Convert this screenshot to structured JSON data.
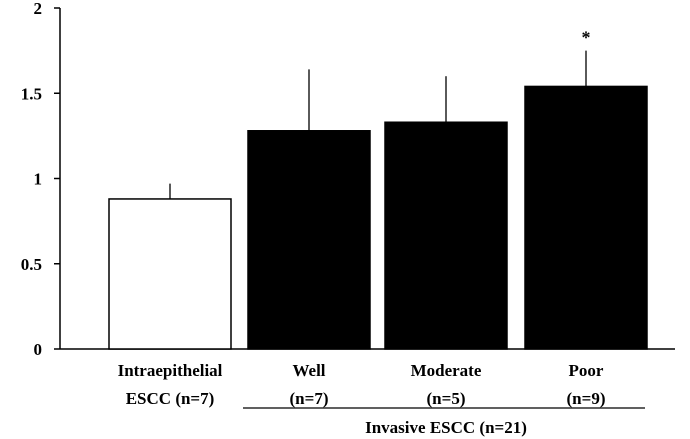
{
  "chart_data": {
    "type": "bar",
    "categories": [
      {
        "line1": "Intraepithelial",
        "line2": "ESCC (n=7)"
      },
      {
        "line1": "Well",
        "line2": "(n=7)"
      },
      {
        "line1": "Moderate",
        "line2": "(n=5)"
      },
      {
        "line1": "Poor",
        "line2": "(n=9)"
      }
    ],
    "values": [
      0.88,
      1.28,
      1.33,
      1.54
    ],
    "error_upper": [
      0.97,
      1.64,
      1.6,
      1.75
    ],
    "bar_colors": [
      "#ffffff",
      "#000000",
      "#000000",
      "#000000"
    ],
    "annotations": [
      "",
      "",
      "",
      "*"
    ],
    "ylim": [
      0,
      2
    ],
    "yticks": [
      {
        "value": 0,
        "label": "0"
      },
      {
        "value": 0.5,
        "label": "0.5"
      },
      {
        "value": 1,
        "label": "1"
      },
      {
        "value": 1.5,
        "label": "1.5"
      },
      {
        "value": 2,
        "label": "2"
      }
    ],
    "group": {
      "label": "Invasive ESCC (n=21)",
      "from_category": 1,
      "to_category": 3
    },
    "title": "",
    "xlabel": "",
    "ylabel": "",
    "grid": false,
    "legend": "none"
  }
}
